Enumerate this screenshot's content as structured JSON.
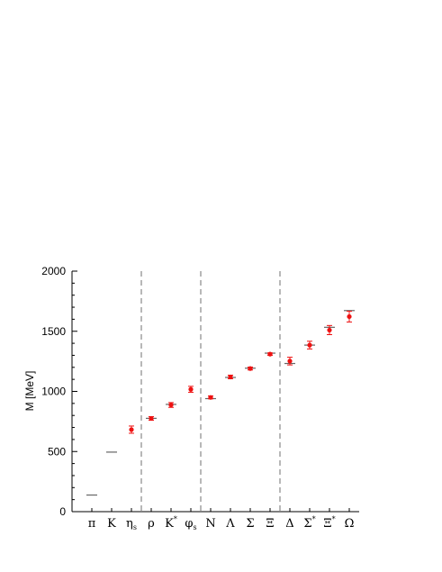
{
  "chart_data": {
    "type": "scatter",
    "title": "",
    "xlabel": "",
    "ylabel": "M [MeV]",
    "ylim": [
      0,
      2000
    ],
    "yticks": [
      0,
      500,
      1000,
      1500,
      2000
    ],
    "grid": false,
    "categories": [
      {
        "base": "π",
        "sub": "",
        "sup": ""
      },
      {
        "base": "K",
        "sub": "",
        "sup": ""
      },
      {
        "base": "η",
        "sub": "s",
        "sup": ""
      },
      {
        "base": "ρ",
        "sub": "",
        "sup": ""
      },
      {
        "base": "K",
        "sub": "",
        "sup": "*"
      },
      {
        "base": "φ",
        "sub": "s",
        "sup": ""
      },
      {
        "base": "N",
        "sub": "",
        "sup": ""
      },
      {
        "base": "Λ",
        "sub": "",
        "sup": ""
      },
      {
        "base": "Σ",
        "sub": "",
        "sup": ""
      },
      {
        "base": "Ξ",
        "sub": "",
        "sup": ""
      },
      {
        "base": "Δ",
        "sub": "",
        "sup": ""
      },
      {
        "base": "Σ",
        "sub": "",
        "sup": "*"
      },
      {
        "base": "Ξ",
        "sub": "",
        "sup": "*"
      },
      {
        "base": "Ω",
        "sub": "",
        "sup": ""
      }
    ],
    "separators_after_index": [
      2,
      5,
      9
    ],
    "series": [
      {
        "marker": "line",
        "color": "#666666",
        "values": [
          138,
          495,
          null,
          776,
          892,
          null,
          940,
          1116,
          1193,
          1318,
          1232,
          1385,
          1533,
          1672
        ]
      },
      {
        "marker": "circle",
        "color": "#ee1111",
        "values": [
          null,
          null,
          682,
          775,
          887,
          1017,
          950,
          1120,
          1190,
          1310,
          1252,
          1385,
          1510,
          1622
        ],
        "errors": [
          null,
          null,
          30,
          15,
          20,
          25,
          12,
          15,
          12,
          10,
          32,
          32,
          38,
          45
        ]
      }
    ]
  }
}
